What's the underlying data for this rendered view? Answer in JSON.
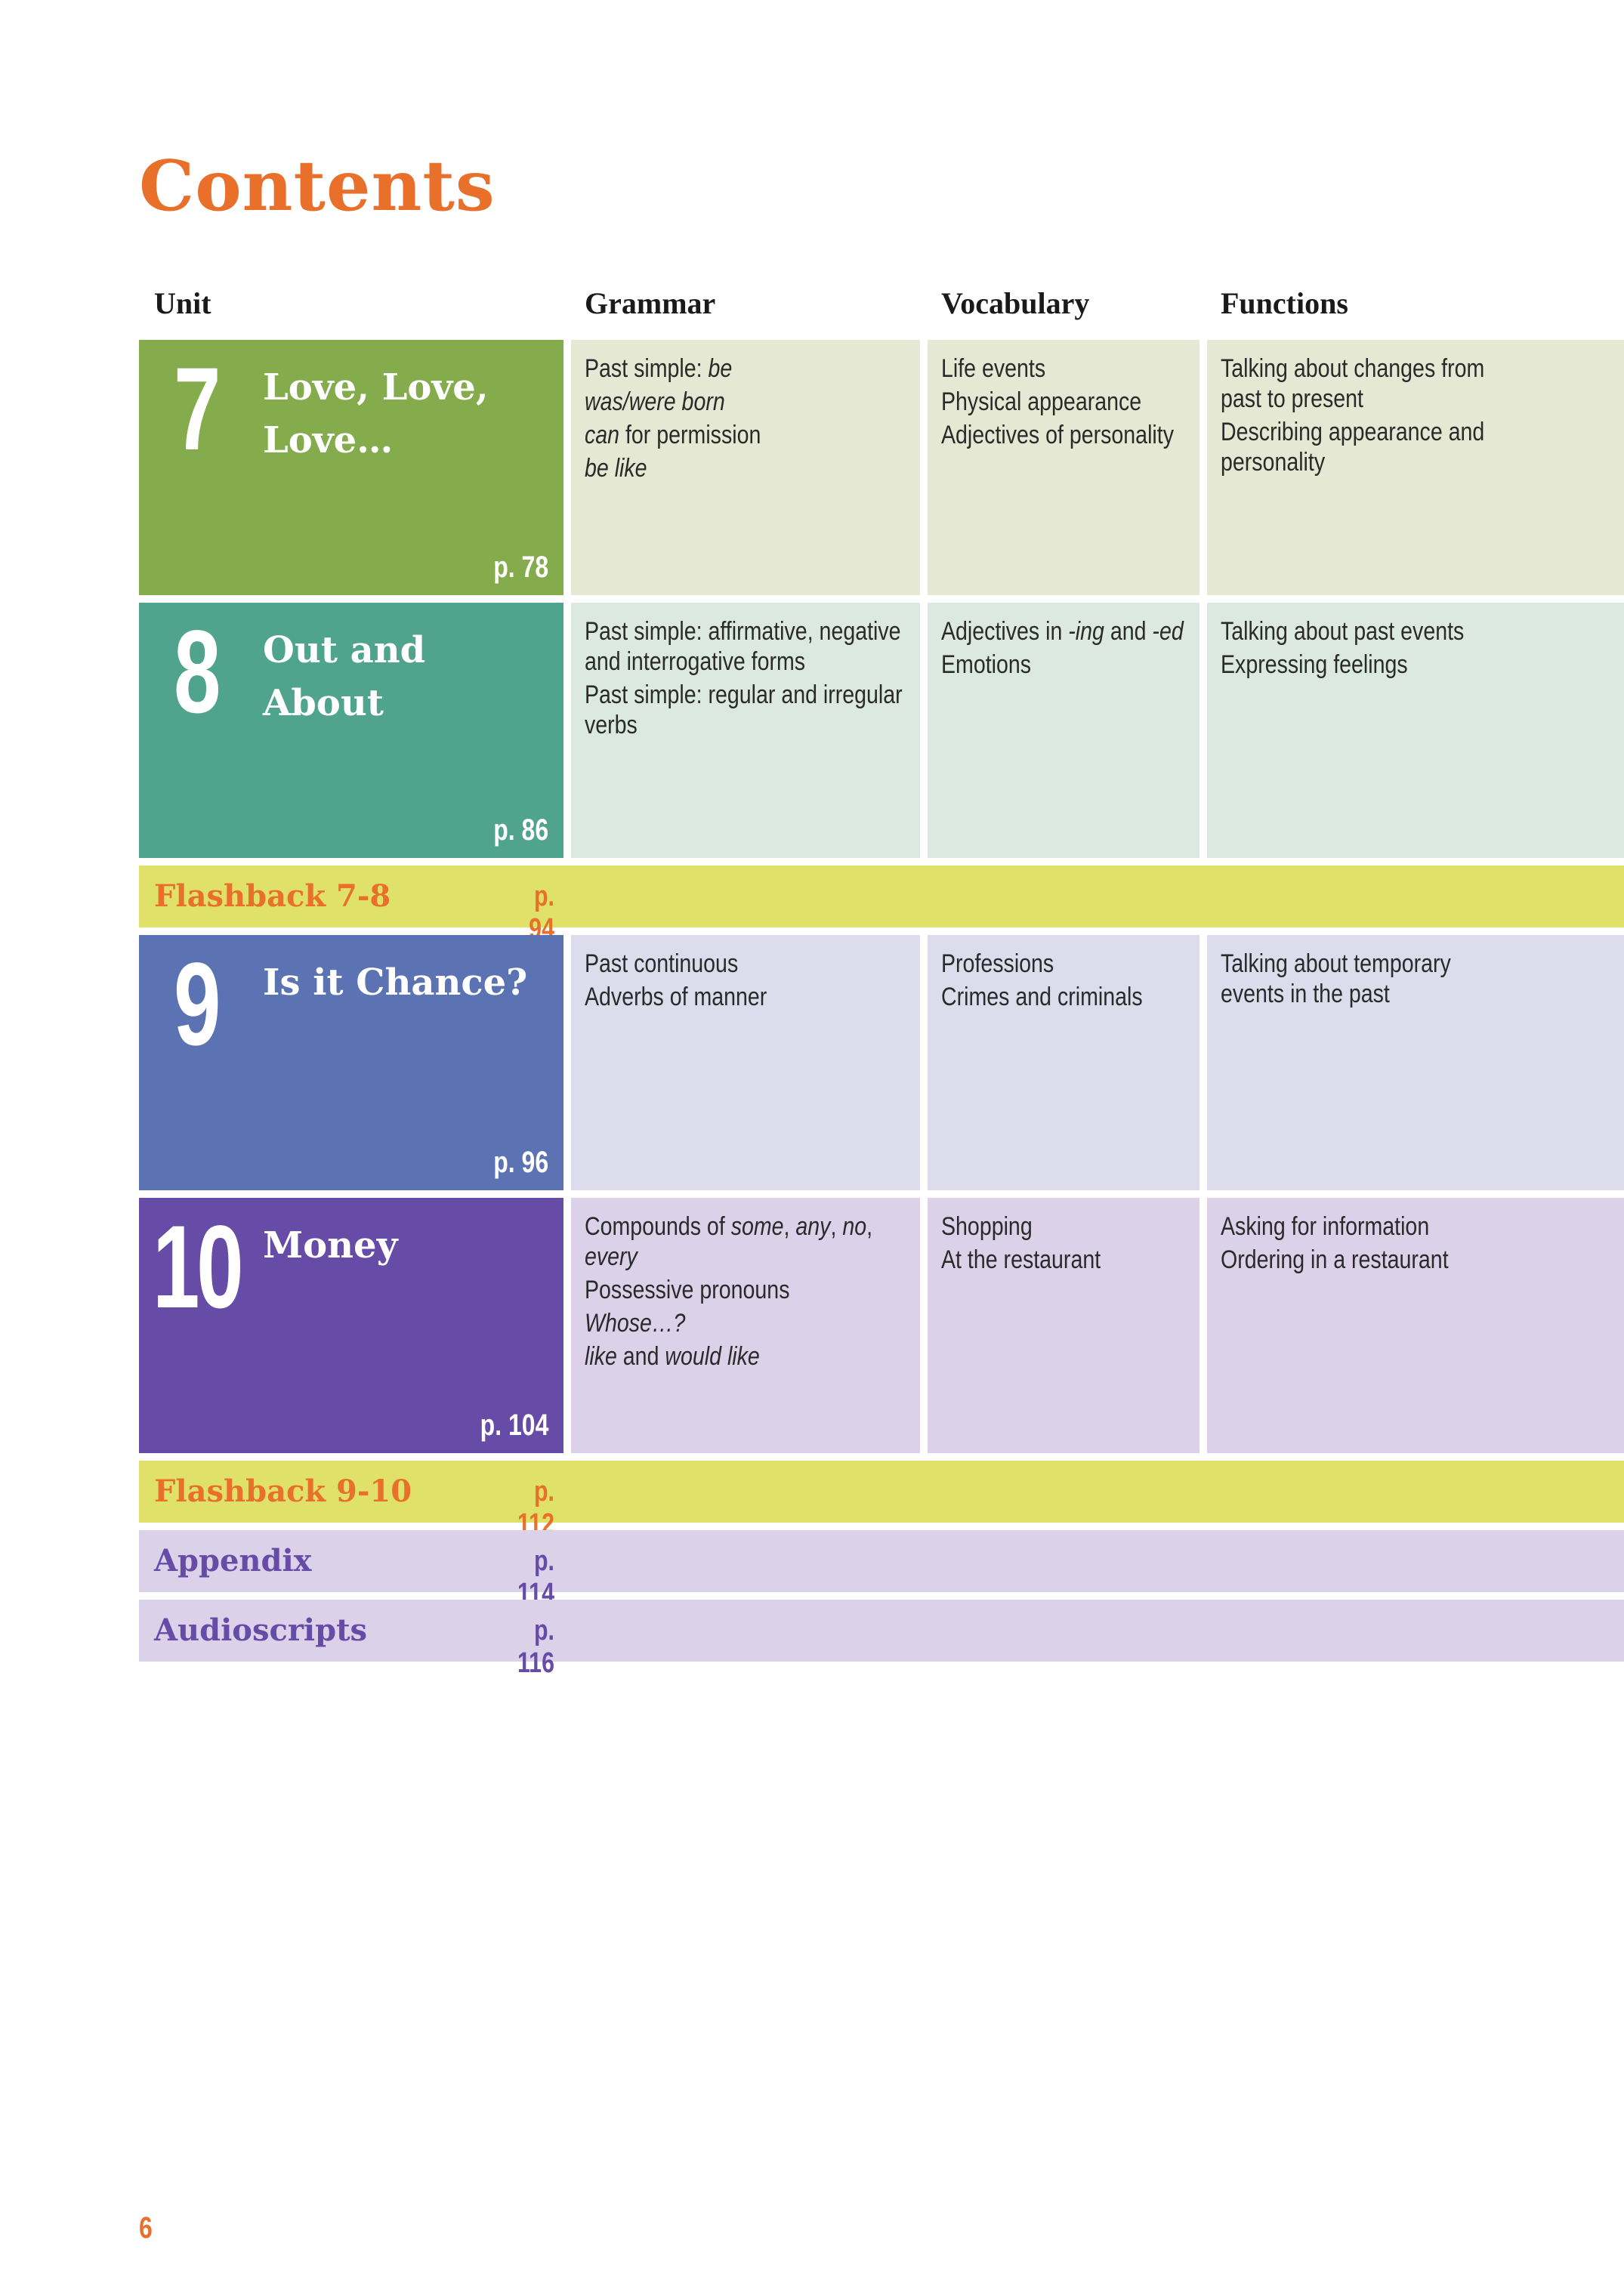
{
  "title": "Contents",
  "headers": {
    "unit": "Unit",
    "grammar": "Grammar",
    "vocabulary": "Vocabulary",
    "functions": "Functions"
  },
  "colors": {
    "title": "#e8702a",
    "unit7": "#84ac4c",
    "unit7_light": "#e5e9d3",
    "unit8": "#50a38c",
    "unit8_light": "#dce9e2",
    "unit9": "#5b72b3",
    "unit9_light": "#dcdced",
    "unit10": "#664ca7",
    "unit10_light": "#dbd2ea",
    "flashback_bg": "#e0e169",
    "flashback_text": "#e8702a",
    "appendix_bg": "#dbd2ea",
    "appendix_text": "#664ca7"
  },
  "units": [
    {
      "number": "7",
      "title_lines": [
        "Love, Love,",
        "Love…"
      ],
      "page": "p. 78",
      "grammar": [
        {
          "segments": [
            {
              "t": "Past simple: ",
              "i": false
            },
            {
              "t": "be",
              "i": true
            }
          ]
        },
        {
          "segments": [
            {
              "t": "was/were born",
              "i": true
            }
          ]
        },
        {
          "segments": [
            {
              "t": "can",
              "i": true
            },
            {
              "t": " for permission",
              "i": false
            }
          ]
        },
        {
          "segments": [
            {
              "t": "be like",
              "i": true
            }
          ]
        }
      ],
      "vocabulary": [
        {
          "segments": [
            {
              "t": "Life events",
              "i": false
            }
          ]
        },
        {
          "segments": [
            {
              "t": "Physical appearance",
              "i": false
            }
          ]
        },
        {
          "segments": [
            {
              "t": "Adjectives of personality",
              "i": false
            }
          ]
        }
      ],
      "functions": [
        {
          "segments": [
            {
              "t": "Talking about changes from",
              "i": false
            }
          ]
        },
        {
          "segments": [
            {
              "t": "past to present",
              "i": false
            }
          ],
          "cont": true
        },
        {
          "segments": [
            {
              "t": "Describing appearance and",
              "i": false
            }
          ]
        },
        {
          "segments": [
            {
              "t": "personality",
              "i": false
            }
          ],
          "cont": true
        }
      ]
    },
    {
      "number": "8",
      "title_lines": [
        "Out and About"
      ],
      "page": "p. 86",
      "grammar": [
        {
          "segments": [
            {
              "t": "Past simple: affirmative, negative",
              "i": false
            }
          ]
        },
        {
          "segments": [
            {
              "t": "and interrogative forms",
              "i": false
            }
          ],
          "cont": true
        },
        {
          "segments": [
            {
              "t": "Past simple: regular and irregular",
              "i": false
            }
          ]
        },
        {
          "segments": [
            {
              "t": "verbs",
              "i": false
            }
          ],
          "cont": true
        }
      ],
      "vocabulary": [
        {
          "segments": [
            {
              "t": "Adjectives in ",
              "i": false
            },
            {
              "t": "-ing",
              "i": true
            },
            {
              "t": " and ",
              "i": false
            },
            {
              "t": "-ed",
              "i": true
            }
          ]
        },
        {
          "segments": [
            {
              "t": "Emotions",
              "i": false
            }
          ]
        }
      ],
      "functions": [
        {
          "segments": [
            {
              "t": "Talking about past events",
              "i": false
            }
          ]
        },
        {
          "segments": [
            {
              "t": "Expressing feelings",
              "i": false
            }
          ]
        }
      ]
    },
    {
      "number": "9",
      "title_lines": [
        "Is it Chance?"
      ],
      "page": "p. 96",
      "grammar": [
        {
          "segments": [
            {
              "t": "Past continuous",
              "i": false
            }
          ]
        },
        {
          "segments": [
            {
              "t": "Adverbs of manner",
              "i": false
            }
          ]
        }
      ],
      "vocabulary": [
        {
          "segments": [
            {
              "t": "Professions",
              "i": false
            }
          ]
        },
        {
          "segments": [
            {
              "t": "Crimes and criminals",
              "i": false
            }
          ]
        }
      ],
      "functions": [
        {
          "segments": [
            {
              "t": "Talking about temporary",
              "i": false
            }
          ]
        },
        {
          "segments": [
            {
              "t": "events in the past",
              "i": false
            }
          ],
          "cont": true
        }
      ]
    },
    {
      "number": "10",
      "title_lines": [
        "Money"
      ],
      "page": "p. 104",
      "grammar": [
        {
          "segments": [
            {
              "t": "Compounds of ",
              "i": false
            },
            {
              "t": "some",
              "i": true
            },
            {
              "t": ", ",
              "i": false
            },
            {
              "t": "any",
              "i": true
            },
            {
              "t": ", ",
              "i": false
            },
            {
              "t": "no",
              "i": true
            },
            {
              "t": ",",
              "i": false
            }
          ]
        },
        {
          "segments": [
            {
              "t": "every",
              "i": true
            }
          ],
          "cont": true
        },
        {
          "segments": [
            {
              "t": "Possessive pronouns",
              "i": false
            }
          ]
        },
        {
          "segments": [
            {
              "t": "Whose…?",
              "i": true
            }
          ]
        },
        {
          "segments": [
            {
              "t": "like",
              "i": true
            },
            {
              "t": " and ",
              "i": false
            },
            {
              "t": "would like",
              "i": true
            }
          ]
        }
      ],
      "vocabulary": [
        {
          "segments": [
            {
              "t": "Shopping",
              "i": false
            }
          ]
        },
        {
          "segments": [
            {
              "t": "At the restaurant",
              "i": false
            }
          ]
        }
      ],
      "functions": [
        {
          "segments": [
            {
              "t": "Asking for information",
              "i": false
            }
          ]
        },
        {
          "segments": [
            {
              "t": "Ordering in a restaurant",
              "i": false
            }
          ]
        }
      ]
    }
  ],
  "bars": {
    "flashback1": {
      "label": "Flashback 7-8",
      "page": "p. 94"
    },
    "flashback2": {
      "label": "Flashback 9-10",
      "page": "p. 112"
    },
    "appendix": {
      "label": "Appendix",
      "page": "p. 114"
    },
    "audioscripts": {
      "label": "Audioscripts",
      "page": "p. 116"
    }
  },
  "page_number": "6"
}
